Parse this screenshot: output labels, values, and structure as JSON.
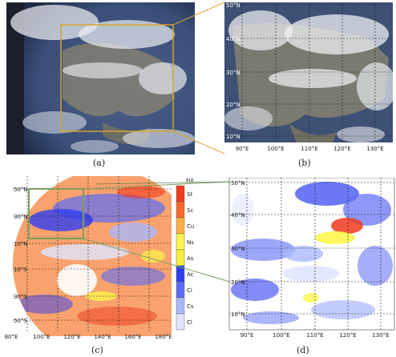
{
  "panels": {
    "a": {
      "caption": "(a)"
    },
    "b": {
      "caption": "(b)",
      "lat_labels": [
        "50°N",
        "40°N",
        "30°N",
        "20°N",
        "10°N"
      ],
      "lon_labels": [
        "90°E",
        "100°E",
        "110°E",
        "120°E",
        "130°E"
      ]
    },
    "c": {
      "caption": "(c)",
      "lat_labels": [
        "50°N",
        "30°N",
        "10°N",
        "10°S",
        "30°S",
        "50°S"
      ],
      "lon_labels": [
        "80°E",
        "100°E",
        "120°E",
        "140°E",
        "160°E",
        "180°E"
      ],
      "legend_fill": "Fill",
      "legend": [
        {
          "label": "St",
          "color": "#f03a1e"
        },
        {
          "label": "Sc",
          "color": "#fb6a2c"
        },
        {
          "label": "Cu",
          "color": "#fdae42"
        },
        {
          "label": "Ns",
          "color": "#fef64c"
        },
        {
          "label": "As",
          "color": "#f7ef3a"
        },
        {
          "label": "Ac",
          "color": "#2f3ef0"
        },
        {
          "label": "Ci",
          "color": "#5c6cf5"
        },
        {
          "label": "Cs",
          "color": "#aab8fb"
        },
        {
          "label": "Cl",
          "color": "#dfe5fd"
        }
      ]
    },
    "d": {
      "caption": "(d)",
      "lat_labels": [
        "50°N",
        "40°N",
        "30°N",
        "20°N",
        "10°N"
      ],
      "lon_labels": [
        "90°E",
        "100°E",
        "110°E",
        "120°E",
        "130°E"
      ]
    }
  },
  "colors": {
    "zoom_box_top": "#d4a52a",
    "zoom_box_bottom": "#7ba05b",
    "ocean": "#3a4e78",
    "cloud": "#e6e8ec",
    "land": "#8c8470"
  }
}
